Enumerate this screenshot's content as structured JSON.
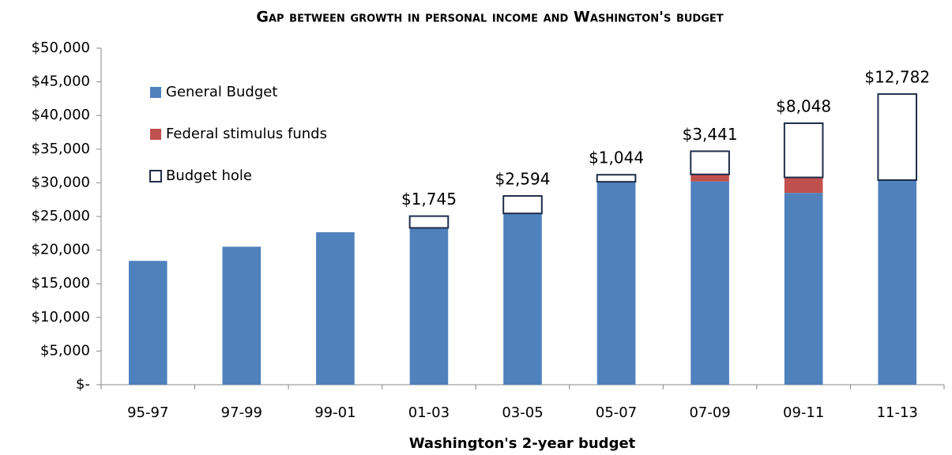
{
  "chart_data": {
    "type": "stacked_bar",
    "title": "Gap between growth in personal income and Washington's budget",
    "x_label": "Washington's 2-year budget",
    "categories": [
      "95-97",
      "97-99",
      "99-01",
      "01-03",
      "03-05",
      "05-07",
      "07-09",
      "09-11",
      "11-13"
    ],
    "series": [
      {
        "name": "General Budget",
        "color": "#4f81bd",
        "values": [
          18400,
          20500,
          22650,
          23300,
          25450,
          30150,
          30200,
          28500,
          30400
        ]
      },
      {
        "name": "Federal stimulus funds",
        "color": "#c0504d",
        "values": [
          null,
          null,
          null,
          null,
          null,
          null,
          1050,
          2300,
          null
        ]
      },
      {
        "name": "Budget hole",
        "color": "#ffffff",
        "stroke": "#1f2d4a",
        "values": [
          null,
          null,
          null,
          1745,
          2594,
          1044,
          3441,
          8048,
          12782
        ],
        "value_labels": [
          null,
          null,
          null,
          "$1,745",
          "$2,594",
          "$1,044",
          "$3,441",
          "$8,048",
          "$12,782"
        ]
      }
    ],
    "ylim": [
      0,
      50000
    ],
    "yticks": [
      {
        "value": 0,
        "label": "$-"
      },
      {
        "value": 5000,
        "label": "$5,000"
      },
      {
        "value": 10000,
        "label": "$10,000"
      },
      {
        "value": 15000,
        "label": "$15,000"
      },
      {
        "value": 20000,
        "label": "$20,000"
      },
      {
        "value": 25000,
        "label": "$25,000"
      },
      {
        "value": 30000,
        "label": "$30,000"
      },
      {
        "value": 35000,
        "label": "$35,000"
      },
      {
        "value": 40000,
        "label": "$40,000"
      },
      {
        "value": 45000,
        "label": "$45,000"
      },
      {
        "value": 50000,
        "label": "$50,000"
      }
    ],
    "legend": "top-left",
    "grid": false
  }
}
